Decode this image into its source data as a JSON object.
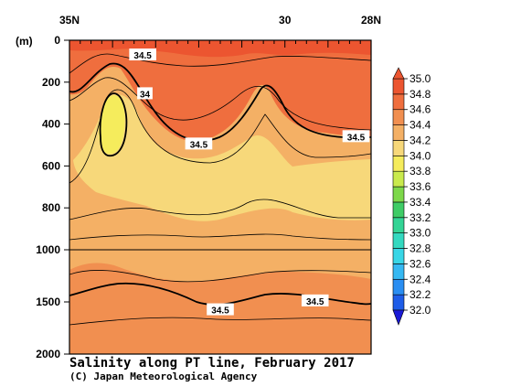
{
  "chart_data": {
    "type": "heatmap",
    "title": "Salinity along PT line, February 2017",
    "credit": "(C) Japan Meteorological Agency",
    "x_axis": {
      "tick_labels": [
        {
          "value": 35,
          "label": "35N"
        },
        {
          "value": 30,
          "label": "30"
        },
        {
          "value": 28,
          "label": "28N"
        }
      ],
      "xlim": [
        35,
        28
      ]
    },
    "y_axis": {
      "unit": "(m)",
      "tick_labels": [
        {
          "value": 0,
          "label": "0"
        },
        {
          "value": 200,
          "label": "200"
        },
        {
          "value": 400,
          "label": "400"
        },
        {
          "value": 600,
          "label": "600"
        },
        {
          "value": 800,
          "label": "800"
        },
        {
          "value": 1000,
          "label": "1000"
        },
        {
          "value": 1500,
          "label": "1500"
        },
        {
          "value": 2000,
          "label": "2000"
        }
      ],
      "ylim": [
        0,
        2000
      ],
      "scale_break_at": 1000
    },
    "contour_labels": [
      {
        "text": "34.5",
        "lat": 33.3,
        "depth": 70
      },
      {
        "text": "34",
        "lat": 33.25,
        "depth": 255
      },
      {
        "text": "34.5",
        "lat": 32.0,
        "depth": 495
      },
      {
        "text": "34.5",
        "lat": 28.35,
        "depth": 460
      },
      {
        "text": "34.5",
        "lat": 31.5,
        "depth": 1575
      },
      {
        "text": "34.5",
        "lat": 29.3,
        "depth": 1490
      }
    ],
    "colorbar": {
      "levels": [
        32.0,
        32.2,
        32.4,
        32.6,
        32.8,
        33.0,
        33.2,
        33.4,
        33.6,
        33.8,
        34.0,
        34.2,
        34.4,
        34.6,
        34.8,
        35.0
      ],
      "labels": [
        "32.0",
        "32.2",
        "32.4",
        "32.6",
        "32.8",
        "33.0",
        "33.2",
        "33.4",
        "33.6",
        "33.8",
        "34.0",
        "34.2",
        "34.4",
        "34.6",
        "34.8",
        "35.0"
      ],
      "colors": [
        "#1a1ad6",
        "#1e5de8",
        "#2a8ef2",
        "#35b8f2",
        "#38d6e6",
        "#33d9c0",
        "#33d495",
        "#3fcc66",
        "#7dd84a",
        "#c9ea4d",
        "#f5ec5c",
        "#f7d87a",
        "#f4b065",
        "#f18f50",
        "#ef6e3e",
        "#ec5530"
      ],
      "extend": "both"
    },
    "field_fills": {
      "deep_high": "#f18f50",
      "mid_intermediate": "#f4b065",
      "core_low": "#f7d87a",
      "surface_high": "#ef6e3e",
      "surface_max": "#ec5530"
    }
  }
}
